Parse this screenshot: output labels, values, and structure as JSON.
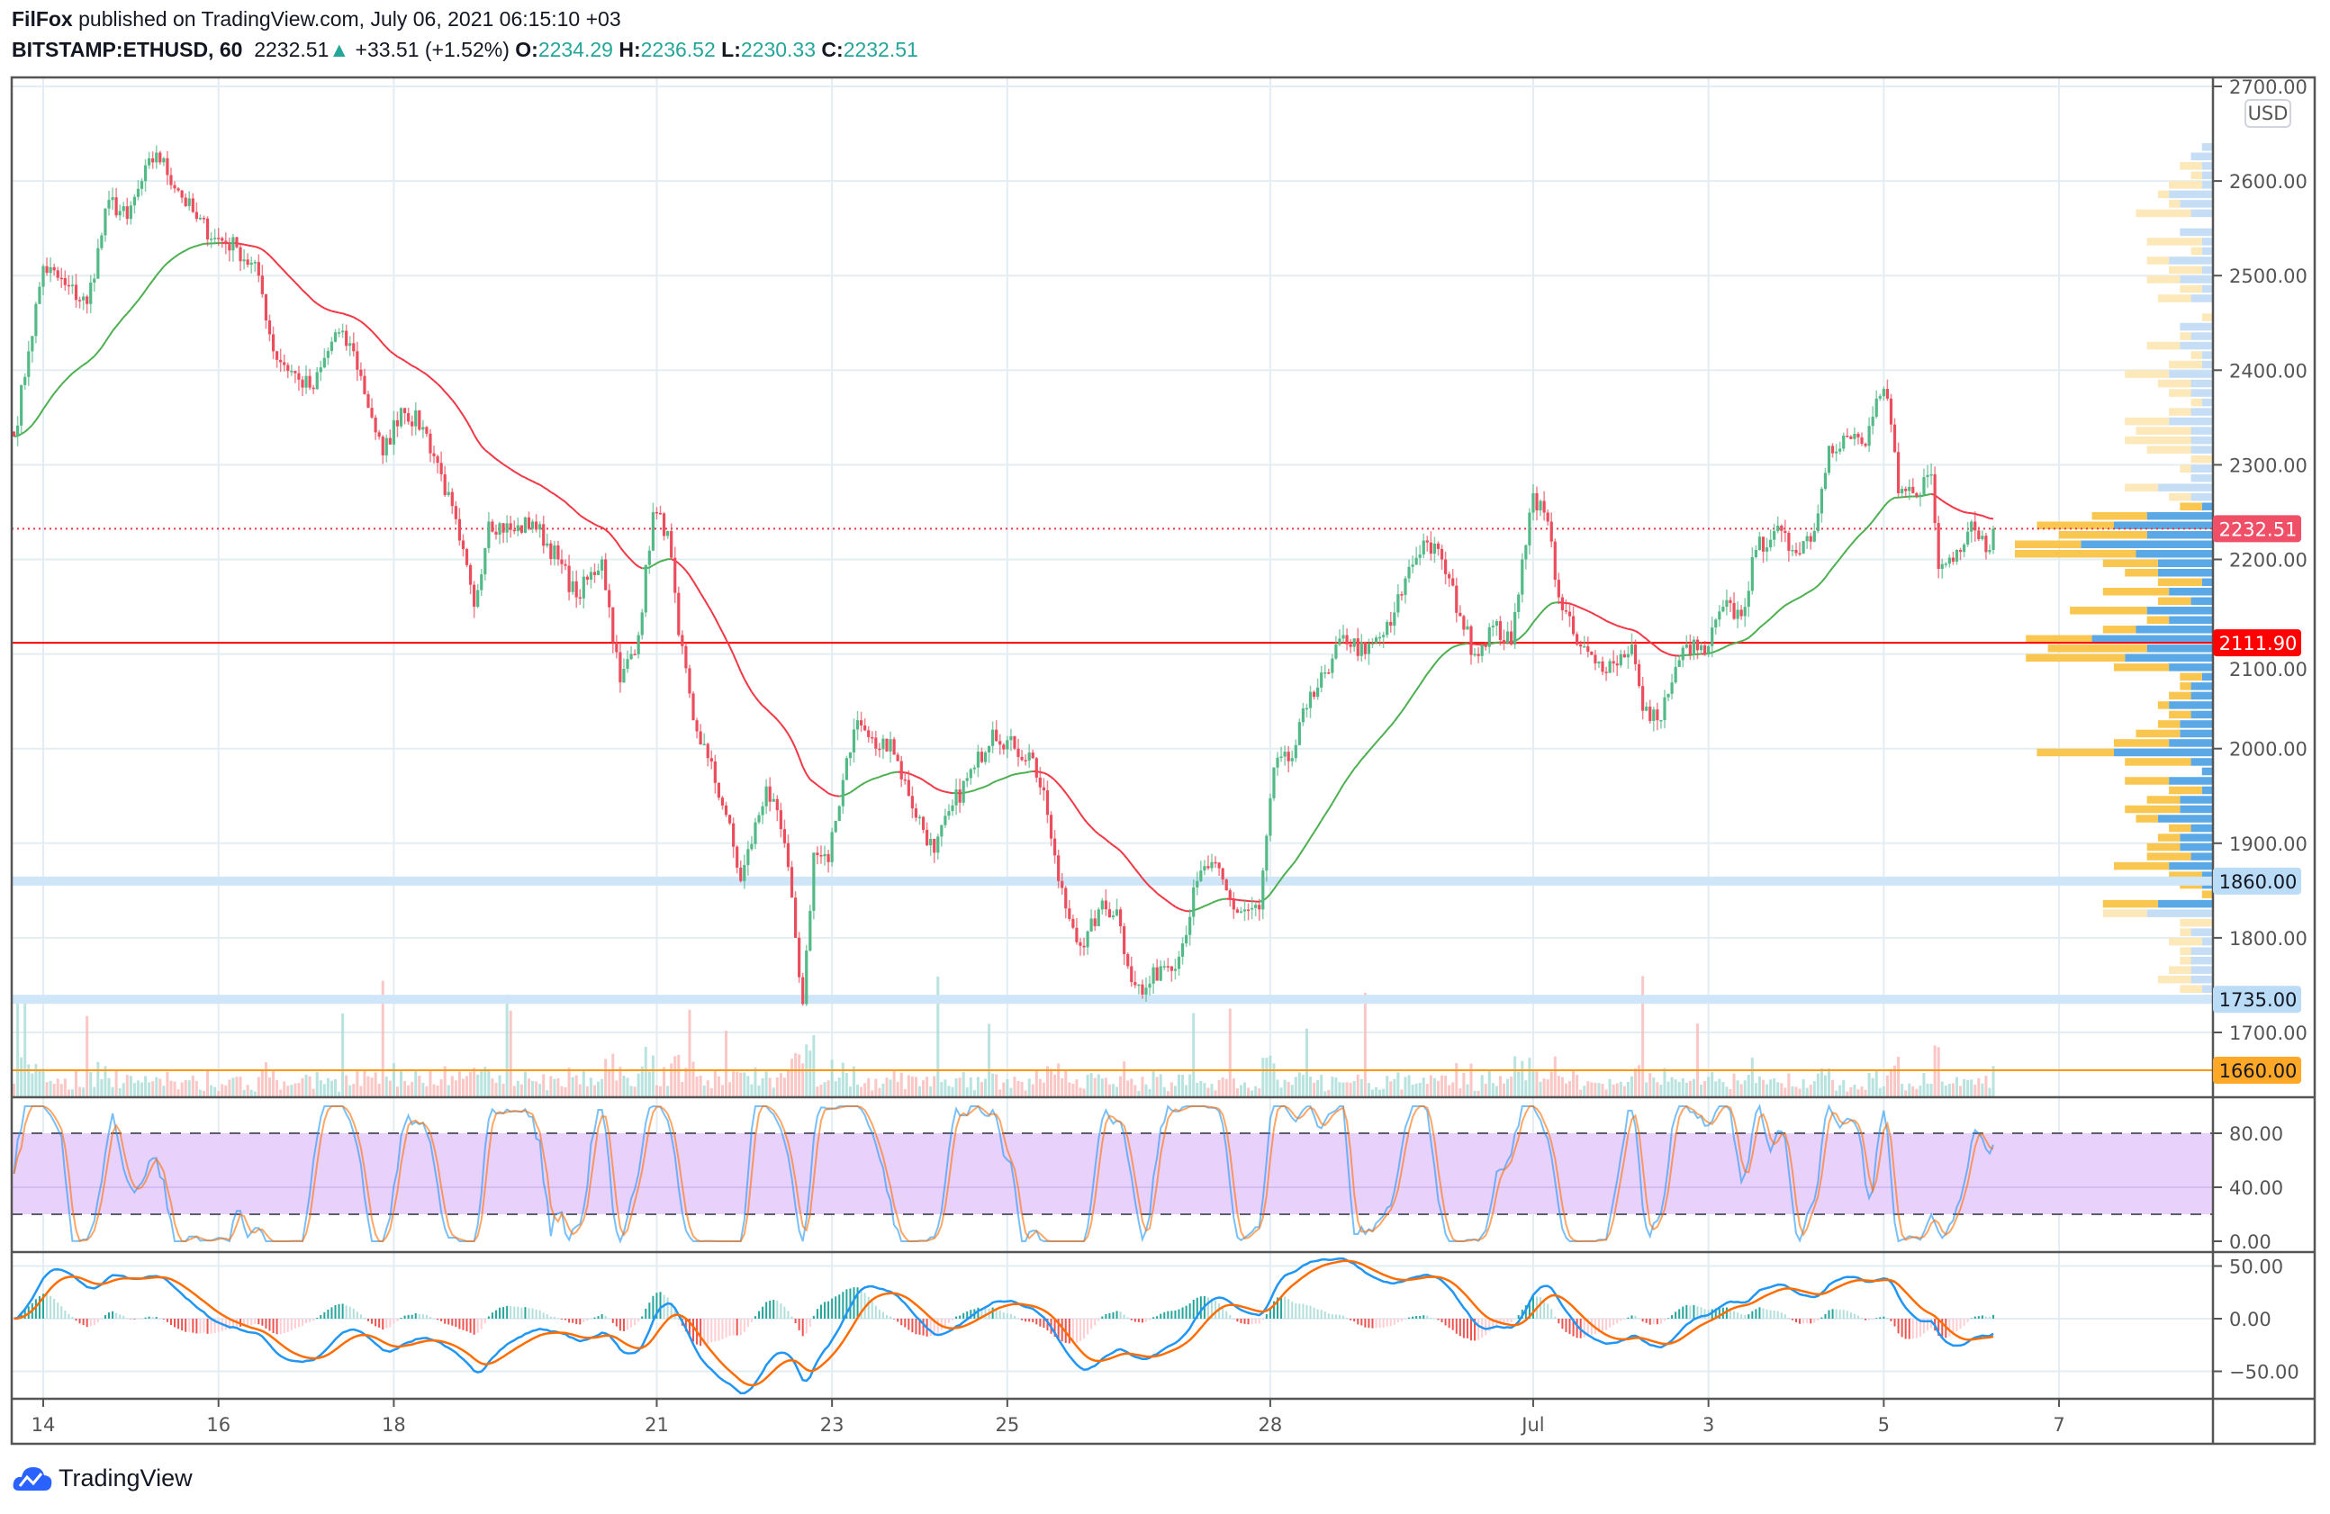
{
  "header": {
    "author": "FilFox",
    "published_text": "published on TradingView.com, July 06, 2021 06:15:10 +03",
    "symbol": "BITSTAMP:ETHUSD, 60",
    "last": "2232.51",
    "change": "+33.51 (+1.52%)",
    "o_label": "O:",
    "o": "2234.29",
    "h_label": "H:",
    "h": "2236.52",
    "l_label": "L:",
    "l": "2230.33",
    "c_label": "C:",
    "c": "2232.51",
    "up_arrow": "▲"
  },
  "currency_badge": "USD",
  "logo_text": "TradingView",
  "colors": {
    "up": "#26a69a",
    "down": "#ef5350",
    "grid": "#e3edf3",
    "ma_up": "#4caf50",
    "ma_down": "#f23645",
    "macd": "#2196f3",
    "signal": "#ff6d00",
    "rsi_band": "#e8d2fc",
    "vp_blue": "#5aa9e6",
    "vp_yellow": "#f9c74f"
  },
  "chart_data": [
    {
      "type": "candlestick",
      "title": "BITSTAMP:ETHUSD, 60",
      "ylim": [
        1640,
        2710
      ],
      "yticks": [
        "2700.00",
        "2600.00",
        "2500.00",
        "2400.00",
        "2300.00",
        "2200.00",
        "2100.00",
        "2000.00",
        "1900.00",
        "1800.00",
        "1700.00"
      ],
      "ytick_values": [
        2700,
        2600,
        2500,
        2400,
        2300,
        2200,
        2100,
        2000,
        1900,
        1800,
        1700
      ],
      "xticks": [
        {
          "label": "14",
          "date": "2021-06-14"
        },
        {
          "label": "16",
          "date": "2021-06-16"
        },
        {
          "label": "18",
          "date": "2021-06-18"
        },
        {
          "label": "21",
          "date": "2021-06-21"
        },
        {
          "label": "23",
          "date": "2021-06-23"
        },
        {
          "label": "25",
          "date": "2021-06-25"
        },
        {
          "label": "28",
          "date": "2021-06-28"
        },
        {
          "label": "Jul",
          "date": "2021-07-01"
        },
        {
          "label": "3",
          "date": "2021-07-03"
        },
        {
          "label": "5",
          "date": "2021-07-05"
        },
        {
          "label": "7",
          "date": "2021-07-07"
        }
      ],
      "close_path": [
        [
          "2021-06-13T16:00",
          2330
        ],
        [
          "2021-06-13T20:00",
          2420
        ],
        [
          "2021-06-14T00:00",
          2510
        ],
        [
          "2021-06-14T06:00",
          2490
        ],
        [
          "2021-06-14T12:00",
          2470
        ],
        [
          "2021-06-14T18:00",
          2580
        ],
        [
          "2021-06-14T23:00",
          2560
        ],
        [
          "2021-06-15T03:00",
          2600
        ],
        [
          "2021-06-15T07:00",
          2630
        ],
        [
          "2021-06-15T13:00",
          2590
        ],
        [
          "2021-06-15T18:00",
          2560
        ],
        [
          "2021-06-15T23:00",
          2540
        ],
        [
          "2021-06-16T05:00",
          2530
        ],
        [
          "2021-06-16T11:00",
          2500
        ],
        [
          "2021-06-16T15:00",
          2420
        ],
        [
          "2021-06-16T22:00",
          2390
        ],
        [
          "2021-06-17T02:00",
          2380
        ],
        [
          "2021-06-17T08:00",
          2440
        ],
        [
          "2021-06-17T13:00",
          2420
        ],
        [
          "2021-06-17T18:00",
          2350
        ],
        [
          "2021-06-17T21:00",
          2310
        ],
        [
          "2021-06-18T02:00",
          2360
        ],
        [
          "2021-06-18T08:00",
          2340
        ],
        [
          "2021-06-18T13:00",
          2290
        ],
        [
          "2021-06-18T18:00",
          2220
        ],
        [
          "2021-06-18T22:00",
          2150
        ],
        [
          "2021-06-19T02:00",
          2240
        ],
        [
          "2021-06-19T09:00",
          2230
        ],
        [
          "2021-06-19T14:00",
          2240
        ],
        [
          "2021-06-19T21:00",
          2200
        ],
        [
          "2021-06-20T02:00",
          2160
        ],
        [
          "2021-06-20T09:00",
          2200
        ],
        [
          "2021-06-20T14:00",
          2070
        ],
        [
          "2021-06-20T19:00",
          2120
        ],
        [
          "2021-06-20T23:00",
          2250
        ],
        [
          "2021-06-21T03:00",
          2230
        ],
        [
          "2021-06-21T06:00",
          2120
        ],
        [
          "2021-06-21T10:00",
          2030
        ],
        [
          "2021-06-21T14:00",
          1990
        ],
        [
          "2021-06-21T19:00",
          1930
        ],
        [
          "2021-06-21T23:00",
          1860
        ],
        [
          "2021-06-22T06:00",
          1960
        ],
        [
          "2021-06-22T11:00",
          1900
        ],
        [
          "2021-06-22T14:00",
          1800
        ],
        [
          "2021-06-22T16:00",
          1730
        ],
        [
          "2021-06-22T19:00",
          1890
        ],
        [
          "2021-06-22T23:00",
          1880
        ],
        [
          "2021-06-23T04:00",
          1990
        ],
        [
          "2021-06-23T07:00",
          2030
        ],
        [
          "2021-06-23T12:00",
          2000
        ],
        [
          "2021-06-23T16:00",
          2010
        ],
        [
          "2021-06-23T21:00",
          1950
        ],
        [
          "2021-06-24T04:00",
          1890
        ],
        [
          "2021-06-24T09:00",
          1940
        ],
        [
          "2021-06-24T15:00",
          1980
        ],
        [
          "2021-06-24T20:00",
          2020
        ],
        [
          "2021-06-25T02:00",
          2000
        ],
        [
          "2021-06-25T07:00",
          1990
        ],
        [
          "2021-06-25T11:00",
          1930
        ],
        [
          "2021-06-25T14:00",
          1860
        ],
        [
          "2021-06-25T17:00",
          1820
        ],
        [
          "2021-06-25T21:00",
          1790
        ],
        [
          "2021-06-26T01:00",
          1830
        ],
        [
          "2021-06-26T06:00",
          1830
        ],
        [
          "2021-06-26T09:00",
          1770
        ],
        [
          "2021-06-26T13:00",
          1740
        ],
        [
          "2021-06-26T18:00",
          1770
        ],
        [
          "2021-06-26T23:00",
          1780
        ],
        [
          "2021-06-27T04:00",
          1860
        ],
        [
          "2021-06-27T08:00",
          1880
        ],
        [
          "2021-06-27T14:00",
          1830
        ],
        [
          "2021-06-27T21:00",
          1830
        ],
        [
          "2021-06-28T01:00",
          1980
        ],
        [
          "2021-06-28T06:00",
          1990
        ],
        [
          "2021-06-28T11:00",
          2060
        ],
        [
          "2021-06-28T16:00",
          2080
        ],
        [
          "2021-06-28T20:00",
          2120
        ],
        [
          "2021-06-29T02:00",
          2100
        ],
        [
          "2021-06-29T09:00",
          2130
        ],
        [
          "2021-06-29T13:00",
          2180
        ],
        [
          "2021-06-29T18:00",
          2220
        ],
        [
          "2021-06-29T23:00",
          2200
        ],
        [
          "2021-06-30T04:00",
          2140
        ],
        [
          "2021-06-30T08:00",
          2100
        ],
        [
          "2021-06-30T13:00",
          2130
        ],
        [
          "2021-06-30T18:00",
          2110
        ],
        [
          "2021-06-30T21:00",
          2200
        ],
        [
          "2021-07-01T00:00",
          2270
        ],
        [
          "2021-07-01T04:00",
          2240
        ],
        [
          "2021-07-01T07:00",
          2160
        ],
        [
          "2021-07-01T12:00",
          2110
        ],
        [
          "2021-07-01T17:00",
          2090
        ],
        [
          "2021-07-01T22:00",
          2090
        ],
        [
          "2021-07-02T03:00",
          2110
        ],
        [
          "2021-07-02T06:00",
          2040
        ],
        [
          "2021-07-02T10:00",
          2030
        ],
        [
          "2021-07-02T14:00",
          2070
        ],
        [
          "2021-07-02T18:00",
          2110
        ],
        [
          "2021-07-02T23:00",
          2100
        ],
        [
          "2021-07-03T04:00",
          2150
        ],
        [
          "2021-07-03T09:00",
          2140
        ],
        [
          "2021-07-03T13:00",
          2210
        ],
        [
          "2021-07-03T18:00",
          2230
        ],
        [
          "2021-07-03T23:00",
          2210
        ],
        [
          "2021-07-04T05:00",
          2230
        ],
        [
          "2021-07-04T09:00",
          2320
        ],
        [
          "2021-07-04T14:00",
          2330
        ],
        [
          "2021-07-04T19:00",
          2320
        ],
        [
          "2021-07-04T22:00",
          2370
        ],
        [
          "2021-07-05T01:00",
          2370
        ],
        [
          "2021-07-05T04:00",
          2270
        ],
        [
          "2021-07-05T08:00",
          2270
        ],
        [
          "2021-07-05T13:00",
          2290
        ],
        [
          "2021-07-05T15:00",
          2190
        ],
        [
          "2021-07-05T20:00",
          2210
        ],
        [
          "2021-07-06T00:00",
          2240
        ],
        [
          "2021-07-06T05:00",
          2210
        ],
        [
          "2021-07-06T06:00",
          2232.51
        ]
      ],
      "price_lines": [
        {
          "value": 2232.51,
          "label": "2232.51",
          "style": "dotted",
          "color": "#f23645",
          "badge_bg": "#ef5068",
          "badge_fg": "#ffffff"
        },
        {
          "value": 2111.9,
          "label": "2111.90",
          "style": "solid",
          "color": "#ff0000",
          "badge_bg": "#ff0000",
          "badge_fg": "#ffffff"
        },
        {
          "value": 1860.0,
          "label": "1860.00",
          "style": "band",
          "color": "#cfe5f8",
          "badge_bg": "#bbdcf7",
          "badge_fg": "#131722"
        },
        {
          "value": 1735.0,
          "label": "1735.00",
          "style": "band",
          "color": "#cfe5f8",
          "badge_bg": "#bbdcf7",
          "badge_fg": "#131722"
        },
        {
          "value": 1660.0,
          "label": "1660.00",
          "style": "solid",
          "color": "#ff9800",
          "badge_bg": "#ffa726",
          "badge_fg": "#131722"
        }
      ]
    },
    {
      "type": "line",
      "indicator": "stochastic-rsi",
      "ylim": [
        0,
        100
      ],
      "yticks": [
        "80.00",
        "40.00",
        "0.00"
      ],
      "ytick_values": [
        80,
        40,
        0
      ],
      "band": [
        20,
        80
      ]
    },
    {
      "type": "line",
      "indicator": "macd",
      "ylim": [
        -65,
        60
      ],
      "yticks": [
        "50.00",
        "0.00",
        "−50.00"
      ],
      "ytick_values": [
        50,
        0,
        -50
      ]
    }
  ]
}
